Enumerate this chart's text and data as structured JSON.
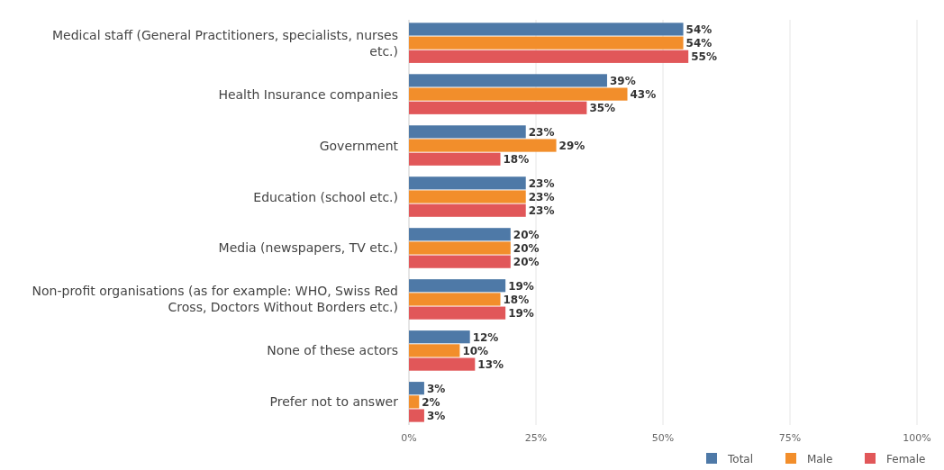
{
  "chart_data": {
    "type": "bar",
    "orientation": "horizontal",
    "categories": [
      "Medical staff (General Practitioners, specialists, nurses etc.)",
      "Health Insurance companies",
      "Government",
      "Education (school etc.)",
      "Media (newspapers, TV etc.)",
      "Non-profit organisations (as for example: WHO, Swiss Red Cross, Doctors Without Borders etc.)",
      "None of these actors",
      "Prefer not to answer"
    ],
    "series": [
      {
        "name": "Total",
        "color": "#4e79a7",
        "values": [
          54,
          39,
          23,
          23,
          20,
          19,
          12,
          3
        ],
        "value_labels": [
          "54%",
          "39%",
          "23%",
          "23%",
          "20%",
          "19%",
          "12%",
          "3%"
        ]
      },
      {
        "name": "Male",
        "color": "#f28e2b",
        "values": [
          54,
          43,
          29,
          23,
          20,
          18,
          10,
          2
        ],
        "value_labels": [
          "54%",
          "43%",
          "29%",
          "23%",
          "20%",
          "18%",
          "10%",
          "2%"
        ]
      },
      {
        "name": "Female",
        "color": "#e15759",
        "values": [
          55,
          35,
          18,
          23,
          20,
          19,
          13,
          3
        ],
        "value_labels": [
          "55%",
          "35%",
          "18%",
          "23%",
          "20%",
          "19%",
          "13%",
          "3%"
        ]
      }
    ],
    "xlim": [
      0,
      100
    ],
    "xticks": [
      {
        "value": 0,
        "label": "0%"
      },
      {
        "value": 25,
        "label": "25%"
      },
      {
        "value": 50,
        "label": "50%"
      },
      {
        "value": 75,
        "label": "75%"
      },
      {
        "value": 100,
        "label": "100%"
      }
    ],
    "grid": "x",
    "legend": "bottom right"
  }
}
